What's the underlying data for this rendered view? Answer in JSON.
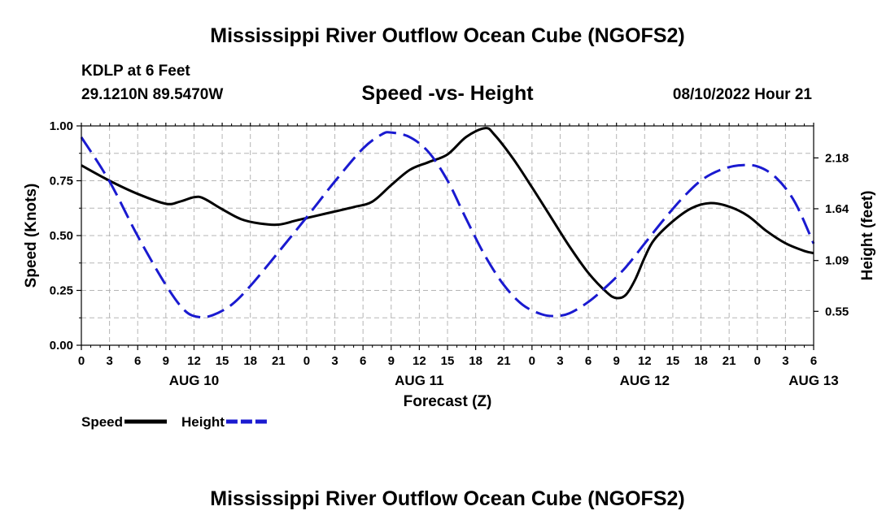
{
  "header": {
    "title": "Mississippi River Outflow Ocean Cube (NGOFS2)",
    "station": "KDLP at 6 Feet",
    "coords": "29.1210N  89.5470W",
    "subtitle": "Speed -vs- Height",
    "run_time": "08/10/2022 Hour 21"
  },
  "footer": {
    "title": "Mississippi River Outflow Ocean Cube (NGOFS2)"
  },
  "chart_data": {
    "type": "line",
    "xlabel": "Forecast (Z)",
    "ylabel_left": "Speed (Knots)",
    "ylabel_right": "Height (feet)",
    "x_range_hours": [
      0,
      78
    ],
    "x_ticks": [
      {
        "h": 0,
        "label": "0"
      },
      {
        "h": 3,
        "label": "3"
      },
      {
        "h": 6,
        "label": "6"
      },
      {
        "h": 9,
        "label": "9"
      },
      {
        "h": 12,
        "label": "12"
      },
      {
        "h": 15,
        "label": "15"
      },
      {
        "h": 18,
        "label": "18"
      },
      {
        "h": 21,
        "label": "21"
      },
      {
        "h": 24,
        "label": "0"
      },
      {
        "h": 27,
        "label": "3"
      },
      {
        "h": 30,
        "label": "6"
      },
      {
        "h": 33,
        "label": "9"
      },
      {
        "h": 36,
        "label": "12"
      },
      {
        "h": 39,
        "label": "15"
      },
      {
        "h": 42,
        "label": "18"
      },
      {
        "h": 45,
        "label": "21"
      },
      {
        "h": 48,
        "label": "0"
      },
      {
        "h": 51,
        "label": "3"
      },
      {
        "h": 54,
        "label": "6"
      },
      {
        "h": 57,
        "label": "9"
      },
      {
        "h": 60,
        "label": "12"
      },
      {
        "h": 63,
        "label": "15"
      },
      {
        "h": 66,
        "label": "18"
      },
      {
        "h": 69,
        "label": "21"
      },
      {
        "h": 72,
        "label": "0"
      },
      {
        "h": 75,
        "label": "3"
      },
      {
        "h": 78,
        "label": "6"
      }
    ],
    "date_labels": [
      {
        "h": 12,
        "label": "AUG 10"
      },
      {
        "h": 36,
        "label": "AUG 11"
      },
      {
        "h": 60,
        "label": "AUG 12"
      },
      {
        "h": 78,
        "label": "AUG 13"
      }
    ],
    "y_left": {
      "min": 0,
      "max": 1,
      "ticks": [
        "0.00",
        "0.25",
        "0.50",
        "0.75",
        "1.00"
      ]
    },
    "y_right": {
      "min": 0.19,
      "max": 2.52,
      "ticks": [
        "0.55",
        "1.09",
        "1.64",
        "2.18"
      ]
    },
    "series": [
      {
        "name": "Speed",
        "axis": "left",
        "color": "#000000",
        "dash": "solid",
        "points": [
          [
            0,
            0.82
          ],
          [
            3,
            0.75
          ],
          [
            6,
            0.69
          ],
          [
            9,
            0.645
          ],
          [
            10.5,
            0.655
          ],
          [
            12,
            0.675
          ],
          [
            13,
            0.67
          ],
          [
            15,
            0.62
          ],
          [
            17,
            0.575
          ],
          [
            19,
            0.555
          ],
          [
            21,
            0.55
          ],
          [
            23,
            0.57
          ],
          [
            26,
            0.6
          ],
          [
            29,
            0.63
          ],
          [
            31,
            0.655
          ],
          [
            33,
            0.73
          ],
          [
            35,
            0.8
          ],
          [
            37,
            0.835
          ],
          [
            39,
            0.87
          ],
          [
            41,
            0.95
          ],
          [
            43,
            0.99
          ],
          [
            44,
            0.96
          ],
          [
            46,
            0.85
          ],
          [
            48,
            0.72
          ],
          [
            50,
            0.585
          ],
          [
            52,
            0.45
          ],
          [
            54,
            0.33
          ],
          [
            56,
            0.24
          ],
          [
            57,
            0.215
          ],
          [
            58,
            0.23
          ],
          [
            59,
            0.3
          ],
          [
            60,
            0.4
          ],
          [
            61,
            0.48
          ],
          [
            63,
            0.565
          ],
          [
            65,
            0.625
          ],
          [
            67,
            0.648
          ],
          [
            69,
            0.632
          ],
          [
            71,
            0.59
          ],
          [
            73,
            0.52
          ],
          [
            75,
            0.465
          ],
          [
            77,
            0.43
          ],
          [
            78,
            0.42
          ]
        ]
      },
      {
        "name": "Height",
        "axis": "right",
        "color": "#1a1ad0",
        "dash": "dashed",
        "points": [
          [
            0,
            2.4
          ],
          [
            3,
            1.93
          ],
          [
            6,
            1.35
          ],
          [
            9,
            0.83
          ],
          [
            11,
            0.56
          ],
          [
            12.5,
            0.49
          ],
          [
            14,
            0.51
          ],
          [
            16,
            0.62
          ],
          [
            18,
            0.82
          ],
          [
            21,
            1.18
          ],
          [
            24,
            1.55
          ],
          [
            27,
            1.93
          ],
          [
            30,
            2.28
          ],
          [
            32,
            2.43
          ],
          [
            33,
            2.45
          ],
          [
            35,
            2.4
          ],
          [
            37,
            2.24
          ],
          [
            39,
            1.94
          ],
          [
            41,
            1.53
          ],
          [
            43,
            1.14
          ],
          [
            45,
            0.83
          ],
          [
            47,
            0.62
          ],
          [
            49,
            0.52
          ],
          [
            50.5,
            0.5
          ],
          [
            52,
            0.53
          ],
          [
            54,
            0.65
          ],
          [
            56,
            0.82
          ],
          [
            58,
            1.02
          ],
          [
            60,
            1.27
          ],
          [
            62,
            1.52
          ],
          [
            64,
            1.75
          ],
          [
            66,
            1.94
          ],
          [
            68,
            2.05
          ],
          [
            70,
            2.1
          ],
          [
            72,
            2.09
          ],
          [
            74,
            1.97
          ],
          [
            76,
            1.71
          ],
          [
            78,
            1.27
          ]
        ]
      }
    ]
  },
  "legend": [
    {
      "label": "Speed",
      "color": "#000000",
      "dash": "solid"
    },
    {
      "label": "Height",
      "color": "#1a1ad0",
      "dash": "dashed"
    }
  ]
}
